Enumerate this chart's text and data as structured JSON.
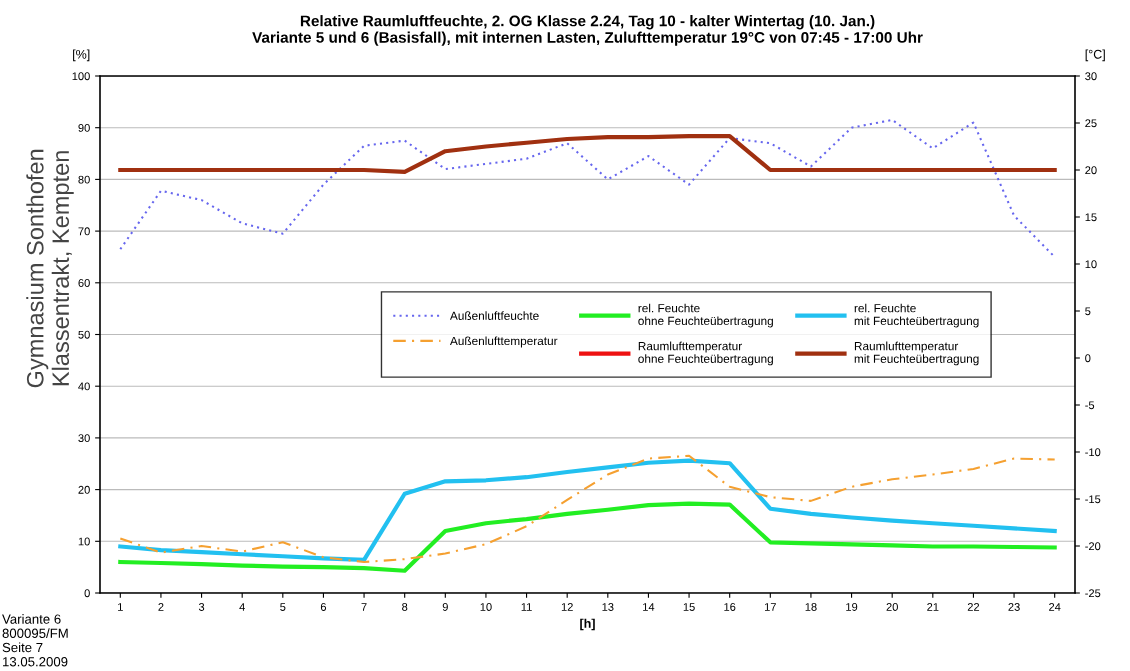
{
  "chart_data": {
    "type": "line",
    "title": "Relative Raumluftfeuchte, 2. OG Klasse 2.24, Tag 10 - kalter Wintertag (10. Jan.)\nVariante 5 und 6 (Basisfall), mit internen Lasten, Zulufttemperatur 19°C von 07:45 - 17:00 Uhr",
    "xlabel": "[h]",
    "ylabel": "[%]",
    "y2label": "[°C]",
    "categories": [
      "1",
      "2",
      "3",
      "4",
      "5",
      "6",
      "7",
      "8",
      "9",
      "10",
      "11",
      "12",
      "13",
      "14",
      "15",
      "16",
      "17",
      "18",
      "19",
      "20",
      "21",
      "22",
      "23",
      "24"
    ],
    "series": [
      {
        "name": "Außenluftfeuchte",
        "color": "#6666ee",
        "line_style": "dotted",
        "values": [
          66.5,
          77.8,
          76,
          71.5,
          69.5,
          79,
          86.5,
          87.5,
          82,
          83,
          84,
          87,
          80,
          84.5,
          79,
          88,
          87,
          82.5,
          90,
          91.5,
          86,
          91,
          73,
          65
        ]
      },
      {
        "name": "Außenlufttemperatur",
        "color": "#f5a030",
        "line_style": "dashed",
        "axis": "y2",
        "values": [
          -19.2,
          -20.7,
          -20,
          -20.6,
          -19.6,
          -21.2,
          -21.7,
          -21.4,
          -20.8,
          -19.8,
          -17.9,
          -15.1,
          -12.4,
          -10.7,
          -10.4,
          -13.7,
          -14.8,
          -15.2,
          -13.7,
          -12.9,
          -12.4,
          -11.8,
          -10.7,
          -10.8
        ]
      },
      {
        "name": "rel. Feuchte\nohne Feuchteübertragung",
        "color": "#22ee22",
        "values": [
          6,
          5.8,
          5.6,
          5.3,
          5.1,
          5,
          4.8,
          4.3,
          12,
          13.5,
          14.3,
          15.3,
          16.1,
          17,
          17.3,
          17.1,
          9.8,
          9.6,
          9.4,
          9.2,
          9,
          9,
          8.9,
          8.8
        ]
      },
      {
        "name": "Raumlufttemperatur\nohne Feuchteübertragung",
        "color": "#ee1111",
        "axis": "y2",
        "values": [
          null,
          null,
          null,
          null,
          null,
          null,
          null,
          null,
          null,
          null,
          null,
          null,
          null,
          null,
          null,
          null,
          null,
          null,
          null,
          null,
          null,
          null,
          null,
          null
        ]
      },
      {
        "name": "rel. Feuchte\nmit Feuchteübertragung",
        "color": "#22c0f0",
        "values": [
          9,
          8.3,
          7.9,
          7.5,
          7.1,
          6.7,
          6.4,
          19.2,
          21.6,
          21.8,
          22.4,
          23.4,
          24.3,
          25.2,
          25.6,
          25.1,
          16.3,
          15.3,
          14.6,
          14,
          13.5,
          13,
          12.5,
          12
        ]
      },
      {
        "name": "Raumlufttemperatur\nmit Feuchteübertragung",
        "color": "#a03010",
        "axis": "y2",
        "values": [
          20,
          20,
          20,
          20,
          20,
          20,
          20,
          19.8,
          22,
          22.5,
          22.9,
          23.3,
          23.5,
          23.5,
          23.6,
          23.6,
          20,
          20,
          20,
          20,
          20,
          20,
          20,
          20
        ]
      }
    ],
    "ylim": [
      0,
      100
    ],
    "yticks": [
      0,
      10,
      20,
      30,
      40,
      50,
      60,
      70,
      80,
      90,
      100
    ],
    "y2lim": [
      -25,
      30
    ],
    "y2ticks": [
      -25,
      -20,
      -15,
      -10,
      -5,
      0,
      5,
      10,
      15,
      20,
      25,
      30
    ],
    "grid": "y",
    "legend": "center right",
    "marker": "none",
    "annotations": [
      "Gymnasium Sonthofen\nKlassentrakt, Kempten",
      "Variante 6\n800095/FM\nSeite 7\n13.05.2009"
    ]
  }
}
